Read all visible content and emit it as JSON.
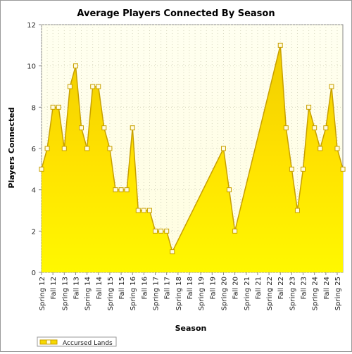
{
  "chart_data": {
    "type": "area",
    "title": "Average Players Connected By Season",
    "xlabel": "Season",
    "ylabel": "Players Connected",
    "ylim": [
      0,
      12
    ],
    "yticks": [
      "0",
      "2",
      "4",
      "6",
      "8",
      "10",
      "12"
    ],
    "tick_labels": [
      "Spring 12",
      "Fall 12",
      "Spring 13",
      "Fall 13",
      "Spring 14",
      "Fall 14",
      "Spring 15",
      "Fall 15",
      "Spring 16",
      "Fall 16",
      "Spring 17",
      "Fall 17",
      "Spring 18",
      "Fall 18",
      "Spring 19",
      "Fall 19",
      "Spring 20",
      "Fall 20",
      "Spring 21",
      "Fall 21",
      "Spring 22",
      "Fall 22",
      "Spring 23",
      "Fall 23",
      "Spring 24",
      "Fall 24",
      "Spring 25"
    ],
    "grid": true,
    "legend_position": "bottom-left",
    "series": [
      {
        "name": "Accursed Lands",
        "color": "#f6d800",
        "line_color": "#c8a000",
        "points": [
          {
            "t": 0,
            "y": 5
          },
          {
            "t": 0.5,
            "y": 6
          },
          {
            "t": 1,
            "y": 8
          },
          {
            "t": 1.5,
            "y": 8
          },
          {
            "t": 2,
            "y": 6
          },
          {
            "t": 2.5,
            "y": 9
          },
          {
            "t": 3,
            "y": 10
          },
          {
            "t": 3.5,
            "y": 7
          },
          {
            "t": 4,
            "y": 6
          },
          {
            "t": 4.5,
            "y": 9
          },
          {
            "t": 5,
            "y": 9
          },
          {
            "t": 5.5,
            "y": 7
          },
          {
            "t": 6,
            "y": 6
          },
          {
            "t": 6.5,
            "y": 4
          },
          {
            "t": 7,
            "y": 4
          },
          {
            "t": 7.5,
            "y": 4
          },
          {
            "t": 8,
            "y": 7
          },
          {
            "t": 8.5,
            "y": 3
          },
          {
            "t": 9,
            "y": 3
          },
          {
            "t": 9.5,
            "y": 3
          },
          {
            "t": 10,
            "y": 2
          },
          {
            "t": 10.5,
            "y": 2
          },
          {
            "t": 11,
            "y": 2
          },
          {
            "t": 11.5,
            "y": 1
          },
          {
            "t": 16,
            "y": 6
          },
          {
            "t": 16.5,
            "y": 4
          },
          {
            "t": 17,
            "y": 2
          },
          {
            "t": 21,
            "y": 11
          },
          {
            "t": 21.5,
            "y": 7
          },
          {
            "t": 22,
            "y": 5
          },
          {
            "t": 22.5,
            "y": 3
          },
          {
            "t": 23,
            "y": 5
          },
          {
            "t": 23.5,
            "y": 8
          },
          {
            "t": 24,
            "y": 7
          },
          {
            "t": 24.5,
            "y": 6
          },
          {
            "t": 25,
            "y": 7
          },
          {
            "t": 25.5,
            "y": 9
          },
          {
            "t": 26,
            "y": 6
          },
          {
            "t": 26.5,
            "y": 5
          }
        ]
      }
    ]
  }
}
